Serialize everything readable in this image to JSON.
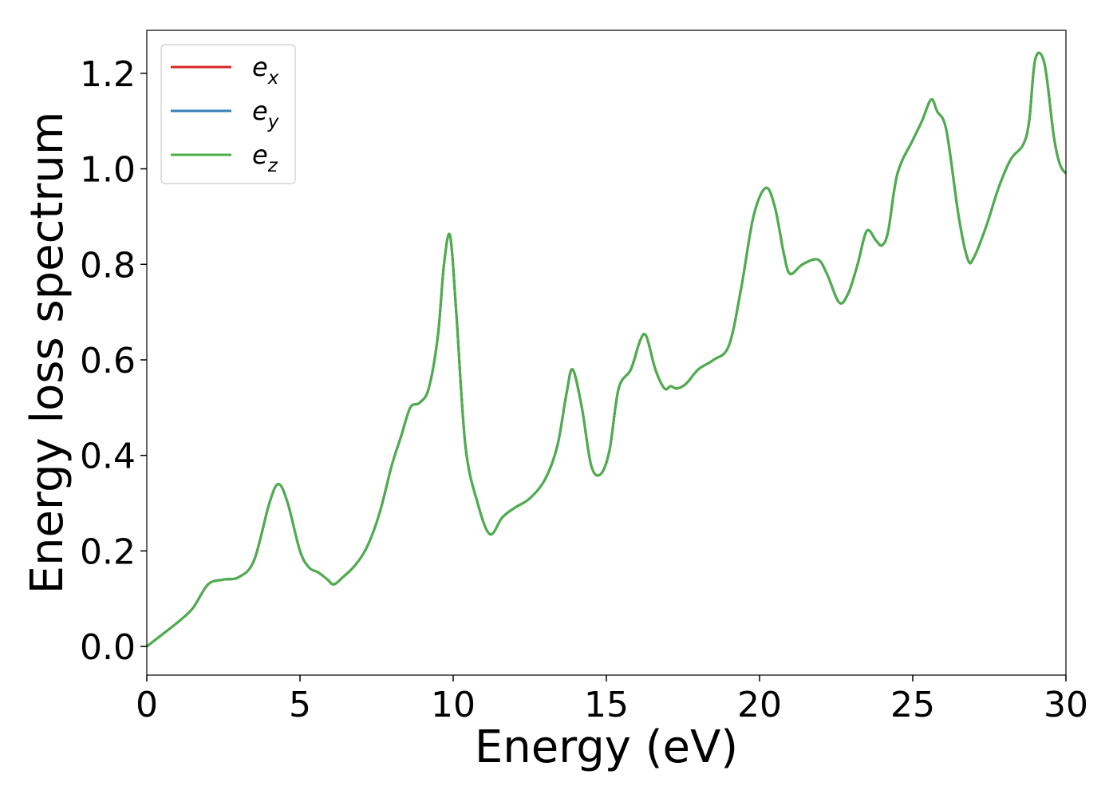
{
  "chart_data": {
    "type": "line",
    "title": "",
    "xlabel": "Energy (eV)",
    "ylabel": "Energy loss spectrum",
    "xlim": [
      0,
      30
    ],
    "ylim": [
      -0.06,
      1.29
    ],
    "xticks": [
      0,
      5,
      10,
      15,
      20,
      25,
      30
    ],
    "yticks": [
      0.0,
      0.2,
      0.4,
      0.6,
      0.8,
      1.0,
      1.2
    ],
    "xtick_labels": [
      "0",
      "5",
      "10",
      "15",
      "20",
      "25",
      "30"
    ],
    "ytick_labels": [
      "0.0",
      "0.2",
      "0.4",
      "0.6",
      "0.8",
      "1.0",
      "1.2"
    ],
    "grid": false,
    "legend_position": "top-left",
    "legend": [
      {
        "base": "e",
        "sub": "x",
        "color": "#d62728"
      },
      {
        "base": "e",
        "sub": "y",
        "color": "#377eb8"
      },
      {
        "base": "e",
        "sub": "z",
        "color": "#4daf4a"
      }
    ],
    "series_note": "The three series overlap exactly; e_z is drawn on top.",
    "x": [
      0,
      0.5,
      1.0,
      1.5,
      2.0,
      2.5,
      3.0,
      3.5,
      4.0,
      4.3,
      4.6,
      5.0,
      5.3,
      5.6,
      5.9,
      6.1,
      6.4,
      6.8,
      7.2,
      7.6,
      8.0,
      8.3,
      8.6,
      8.9,
      9.2,
      9.5,
      9.7,
      9.9,
      10.1,
      10.4,
      10.8,
      11.2,
      11.6,
      12.0,
      12.5,
      13.0,
      13.4,
      13.7,
      13.9,
      14.2,
      14.5,
      14.8,
      15.1,
      15.4,
      15.8,
      16.1,
      16.3,
      16.6,
      16.9,
      17.1,
      17.3,
      17.6,
      18.0,
      18.5,
      19.0,
      19.4,
      19.8,
      20.2,
      20.5,
      20.8,
      21.0,
      21.4,
      21.9,
      22.2,
      22.6,
      22.9,
      23.2,
      23.5,
      23.8,
      24.0,
      24.2,
      24.5,
      25.0,
      25.3,
      25.6,
      25.8,
      26.1,
      26.5,
      26.8,
      27.0,
      27.4,
      27.8,
      28.2,
      28.6,
      28.8,
      29.0,
      29.3,
      29.6,
      29.8,
      30.0
    ],
    "series": [
      {
        "values": [
          0.0,
          0.025,
          0.05,
          0.08,
          0.13,
          0.14,
          0.145,
          0.18,
          0.3,
          0.34,
          0.3,
          0.2,
          0.165,
          0.155,
          0.14,
          0.13,
          0.145,
          0.17,
          0.21,
          0.28,
          0.38,
          0.44,
          0.5,
          0.51,
          0.54,
          0.65,
          0.8,
          0.86,
          0.7,
          0.42,
          0.3,
          0.235,
          0.27,
          0.29,
          0.31,
          0.35,
          0.42,
          0.53,
          0.58,
          0.5,
          0.38,
          0.36,
          0.41,
          0.54,
          0.58,
          0.64,
          0.65,
          0.58,
          0.54,
          0.545,
          0.54,
          0.55,
          0.58,
          0.6,
          0.63,
          0.75,
          0.9,
          0.96,
          0.92,
          0.82,
          0.78,
          0.8,
          0.81,
          0.78,
          0.72,
          0.74,
          0.8,
          0.87,
          0.85,
          0.84,
          0.87,
          0.99,
          1.06,
          1.1,
          1.145,
          1.12,
          1.08,
          0.9,
          0.81,
          0.815,
          0.88,
          0.96,
          1.02,
          1.05,
          1.1,
          1.23,
          1.22,
          1.07,
          1.01,
          0.99
        ]
      },
      {
        "values": [
          0.0,
          0.025,
          0.05,
          0.08,
          0.13,
          0.14,
          0.145,
          0.18,
          0.3,
          0.34,
          0.3,
          0.2,
          0.165,
          0.155,
          0.14,
          0.13,
          0.145,
          0.17,
          0.21,
          0.28,
          0.38,
          0.44,
          0.5,
          0.51,
          0.54,
          0.65,
          0.8,
          0.86,
          0.7,
          0.42,
          0.3,
          0.235,
          0.27,
          0.29,
          0.31,
          0.35,
          0.42,
          0.53,
          0.58,
          0.5,
          0.38,
          0.36,
          0.41,
          0.54,
          0.58,
          0.64,
          0.65,
          0.58,
          0.54,
          0.545,
          0.54,
          0.55,
          0.58,
          0.6,
          0.63,
          0.75,
          0.9,
          0.96,
          0.92,
          0.82,
          0.78,
          0.8,
          0.81,
          0.78,
          0.72,
          0.74,
          0.8,
          0.87,
          0.85,
          0.84,
          0.87,
          0.99,
          1.06,
          1.1,
          1.145,
          1.12,
          1.08,
          0.9,
          0.81,
          0.815,
          0.88,
          0.96,
          1.02,
          1.05,
          1.1,
          1.23,
          1.22,
          1.07,
          1.01,
          0.99
        ]
      },
      {
        "values": [
          0.0,
          0.025,
          0.05,
          0.08,
          0.13,
          0.14,
          0.145,
          0.18,
          0.3,
          0.34,
          0.3,
          0.2,
          0.165,
          0.155,
          0.14,
          0.13,
          0.145,
          0.17,
          0.21,
          0.28,
          0.38,
          0.44,
          0.5,
          0.51,
          0.54,
          0.65,
          0.8,
          0.86,
          0.7,
          0.42,
          0.3,
          0.235,
          0.27,
          0.29,
          0.31,
          0.35,
          0.42,
          0.53,
          0.58,
          0.5,
          0.38,
          0.36,
          0.41,
          0.54,
          0.58,
          0.64,
          0.65,
          0.58,
          0.54,
          0.545,
          0.54,
          0.55,
          0.58,
          0.6,
          0.63,
          0.75,
          0.9,
          0.96,
          0.92,
          0.82,
          0.78,
          0.8,
          0.81,
          0.78,
          0.72,
          0.74,
          0.8,
          0.87,
          0.85,
          0.84,
          0.87,
          0.99,
          1.06,
          1.1,
          1.145,
          1.12,
          1.08,
          0.9,
          0.81,
          0.815,
          0.88,
          0.96,
          1.02,
          1.05,
          1.1,
          1.23,
          1.22,
          1.07,
          1.01,
          0.99
        ]
      }
    ]
  }
}
